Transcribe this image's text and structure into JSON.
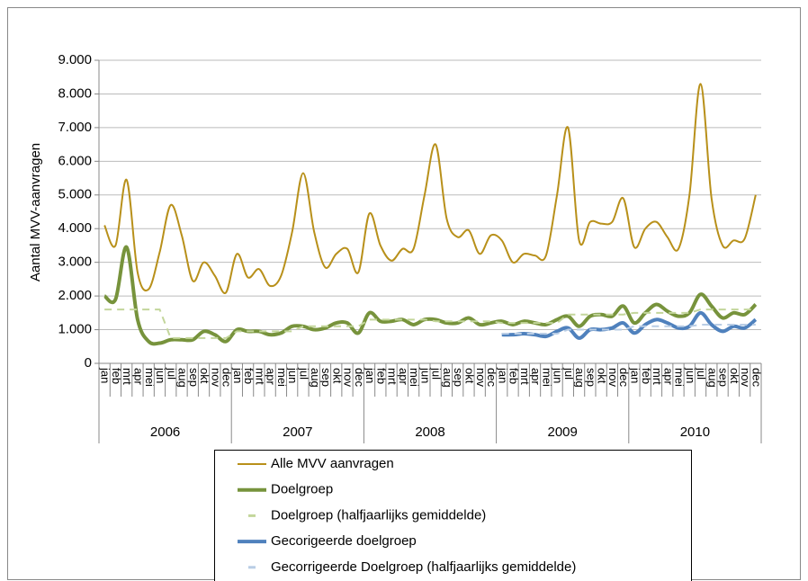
{
  "chart_data": {
    "type": "line",
    "y_label": "Aantal MVV-aanvragen",
    "categories": [
      "jan",
      "feb",
      "mrt",
      "apr",
      "mei",
      "jun",
      "jul",
      "aug",
      "sep",
      "okt",
      "nov",
      "dec",
      "jan",
      "feb",
      "mrt",
      "apr",
      "mei",
      "jun",
      "jul",
      "aug",
      "sep",
      "okt",
      "nov",
      "dec",
      "jan",
      "feb",
      "mrt",
      "apr",
      "mei",
      "jun",
      "jul",
      "aug",
      "sep",
      "okt",
      "nov",
      "dec",
      "jan",
      "feb",
      "mrt",
      "apr",
      "mei",
      "jun",
      "jul",
      "aug",
      "sep",
      "okt",
      "nov",
      "dec",
      "jan",
      "feb",
      "mrt",
      "apr",
      "mei",
      "jun",
      "jul",
      "aug",
      "sep",
      "okt",
      "nov",
      "dec"
    ],
    "years": [
      "2006",
      "2007",
      "2008",
      "2009",
      "2010"
    ],
    "ylim": [
      0,
      9000
    ],
    "yticks": [
      0,
      {
        "value": 1000,
        "label": "1.000"
      },
      {
        "value": 2000,
        "label": "2.000"
      },
      {
        "value": 3000,
        "label": "3.000"
      },
      {
        "value": 4000,
        "label": "4.000"
      },
      {
        "value": 5000,
        "label": "5.000"
      },
      {
        "value": 6000,
        "label": "6.000"
      },
      {
        "value": 7000,
        "label": "7.000"
      },
      {
        "value": 8000,
        "label": "8.000"
      },
      {
        "value": 9000,
        "label": "9.000"
      }
    ],
    "grid": true,
    "series": [
      {
        "name": "Alle MVV aanvragen",
        "color": "#b8901a",
        "width": 2,
        "dashed": false,
        "values": [
          4100,
          3500,
          5450,
          2700,
          2200,
          3300,
          4700,
          3800,
          2450,
          3000,
          2600,
          2100,
          3250,
          2550,
          2800,
          2300,
          2600,
          3900,
          5650,
          3900,
          2850,
          3250,
          3400,
          2700,
          4450,
          3500,
          3050,
          3400,
          3400,
          5000,
          6500,
          4300,
          3750,
          3950,
          3250,
          3800,
          3650,
          3000,
          3250,
          3200,
          3200,
          5000,
          7000,
          3650,
          4200,
          4150,
          4200,
          4900,
          3450,
          4000,
          4200,
          3750,
          3400,
          5000,
          8300,
          4900,
          3500,
          3650,
          3700,
          5000
        ]
      },
      {
        "name": "Doelgroep",
        "color": "#77933c",
        "width": 4,
        "dashed": false,
        "values": [
          2000,
          1900,
          3450,
          1300,
          650,
          600,
          700,
          700,
          700,
          950,
          850,
          650,
          1000,
          950,
          950,
          850,
          900,
          1100,
          1100,
          1000,
          1050,
          1200,
          1200,
          900,
          1500,
          1250,
          1250,
          1300,
          1150,
          1300,
          1300,
          1200,
          1200,
          1350,
          1150,
          1200,
          1250,
          1150,
          1250,
          1200,
          1150,
          1300,
          1400,
          1100,
          1400,
          1450,
          1400,
          1700,
          1200,
          1500,
          1750,
          1550,
          1400,
          1500,
          2050,
          1700,
          1350,
          1500,
          1450,
          1750
        ]
      },
      {
        "name": "Doelgroep (halfjaarlijks gemiddelde)",
        "color": "#c3d69b",
        "width": 2,
        "dashed": true,
        "values": [
          1600,
          1600,
          1600,
          1600,
          1600,
          1600,
          750,
          750,
          750,
          750,
          750,
          750,
          950,
          950,
          950,
          950,
          950,
          950,
          1100,
          1100,
          1100,
          1100,
          1100,
          1100,
          1300,
          1300,
          1300,
          1300,
          1300,
          1300,
          1250,
          1250,
          1250,
          1250,
          1250,
          1250,
          1200,
          1200,
          1200,
          1200,
          1200,
          1200,
          1450,
          1450,
          1450,
          1450,
          1450,
          1450,
          1500,
          1500,
          1500,
          1500,
          1500,
          1500,
          1600,
          1600,
          1600,
          1600,
          1600,
          1600
        ]
      },
      {
        "name": "Gecorigeerde doelgroep",
        "color": "#4f81bd",
        "width": 4,
        "dashed": false,
        "values": [
          null,
          null,
          null,
          null,
          null,
          null,
          null,
          null,
          null,
          null,
          null,
          null,
          null,
          null,
          null,
          null,
          null,
          null,
          null,
          null,
          null,
          null,
          null,
          null,
          null,
          null,
          null,
          null,
          null,
          null,
          null,
          null,
          null,
          null,
          null,
          null,
          850,
          850,
          880,
          850,
          800,
          950,
          1050,
          750,
          1000,
          1000,
          1050,
          1200,
          900,
          1150,
          1300,
          1200,
          1050,
          1100,
          1500,
          1150,
          950,
          1100,
          1050,
          1300
        ]
      },
      {
        "name": "Gecorrigeerde Doelgroep (halfjaarlijks gemiddelde)",
        "color": "#b9cde5",
        "width": 2,
        "dashed": true,
        "values": [
          null,
          null,
          null,
          null,
          null,
          null,
          null,
          null,
          null,
          null,
          null,
          null,
          null,
          null,
          null,
          null,
          null,
          null,
          null,
          null,
          null,
          null,
          null,
          null,
          null,
          null,
          null,
          null,
          null,
          null,
          null,
          null,
          null,
          null,
          null,
          null,
          880,
          880,
          880,
          880,
          880,
          880,
          1000,
          1000,
          1000,
          1000,
          1000,
          1000,
          1100,
          1100,
          1100,
          1100,
          1100,
          1100,
          1150,
          1150,
          1150,
          1150,
          1150,
          1150
        ]
      }
    ]
  }
}
